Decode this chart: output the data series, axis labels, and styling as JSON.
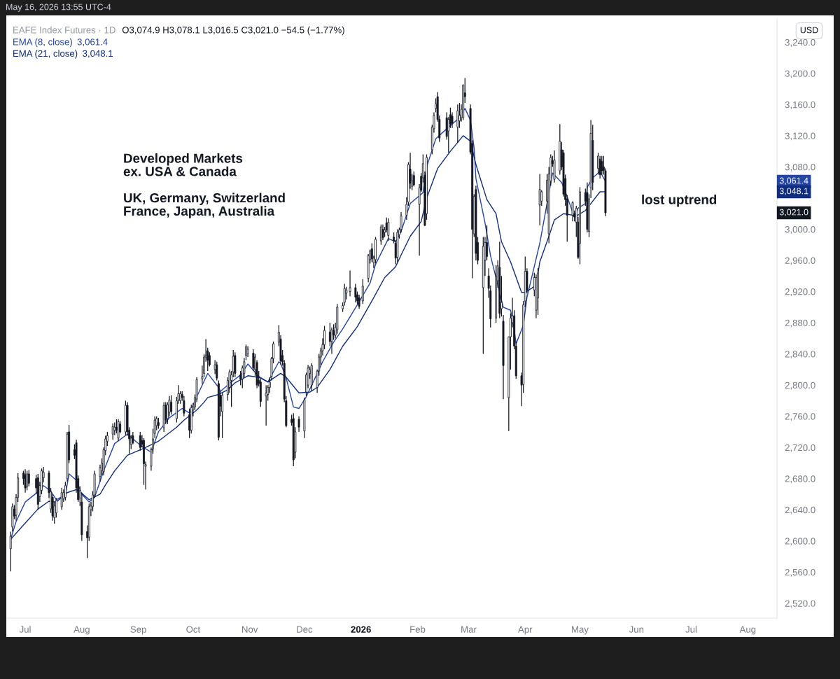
{
  "chart_data": {
    "type": "candlestick",
    "title": "EAFE Index Futures · 1D",
    "subtitle": "O3,074.9 H3,078.1 L3,016.5 C3,021.0 −54.5 (−1.77%)",
    "ylabel": "USD",
    "color": "#131722",
    "legend": "top left",
    "xlim": [
      "2025-06-21",
      "2026-08-17"
    ],
    "xticks": [
      {
        "value": "2025-07-01",
        "label": "Jul"
      },
      {
        "value": "2025-08-01",
        "label": "Aug"
      },
      {
        "value": "2025-09-01",
        "label": "Sep"
      },
      {
        "value": "2025-10-01",
        "label": "Oct"
      },
      {
        "value": "2025-11-01",
        "label": "Nov"
      },
      {
        "value": "2025-12-01",
        "label": "Dec"
      },
      {
        "value": "2026-01-01",
        "label": "2026"
      },
      {
        "value": "2026-02-01",
        "label": "Feb"
      },
      {
        "value": "2026-03-01",
        "label": "Mar"
      },
      {
        "value": "2026-04-01",
        "label": "Apr"
      },
      {
        "value": "2026-05-01",
        "label": "May"
      },
      {
        "value": "2026-06-01",
        "label": "Jun"
      },
      {
        "value": "2026-07-01",
        "label": "Jul"
      },
      {
        "value": "2026-08-01",
        "label": "Aug"
      }
    ],
    "ylim": [
      2501,
      3269
    ],
    "yticks": [
      {
        "value": 2520,
        "label": "2,520.0"
      },
      {
        "value": 2560,
        "label": "2,560.0"
      },
      {
        "value": 2600,
        "label": "2,600.0"
      },
      {
        "value": 2640,
        "label": "2,640.0"
      },
      {
        "value": 2680,
        "label": "2,680.0"
      },
      {
        "value": 2720,
        "label": "2,720.0"
      },
      {
        "value": 2760,
        "label": "2,760.0"
      },
      {
        "value": 2800,
        "label": "2,800.0"
      },
      {
        "value": 2840,
        "label": "2,840.0"
      },
      {
        "value": 2880,
        "label": "2,880.0"
      },
      {
        "value": 2920,
        "label": "2,920.0"
      },
      {
        "value": 2960,
        "label": "2,960.0"
      },
      {
        "value": 3000,
        "label": "3,000.0"
      },
      {
        "value": 3080,
        "label": "3,080.0"
      },
      {
        "value": 3120,
        "label": "3,120.0"
      },
      {
        "value": 3160,
        "label": "3,160.0"
      },
      {
        "value": 3200,
        "label": "3,200.0"
      },
      {
        "value": 3240,
        "label": "3,240.0"
      }
    ],
    "x": [
      "2025-06-23",
      "2025-06-24",
      "2025-06-25",
      "2025-06-26",
      "2025-06-27",
      "2025-06-30",
      "2025-07-01",
      "2025-07-02",
      "2025-07-03",
      "2025-07-07",
      "2025-07-08",
      "2025-07-09",
      "2025-07-10",
      "2025-07-11",
      "2025-07-14",
      "2025-07-15",
      "2025-07-16",
      "2025-07-17",
      "2025-07-18",
      "2025-07-21",
      "2025-07-22",
      "2025-07-23",
      "2025-07-24",
      "2025-07-25",
      "2025-07-28",
      "2025-07-29",
      "2025-07-30",
      "2025-07-31",
      "2025-08-01",
      "2025-08-04",
      "2025-08-05",
      "2025-08-06",
      "2025-08-07",
      "2025-08-08",
      "2025-08-11",
      "2025-08-12",
      "2025-08-13",
      "2025-08-14",
      "2025-08-15",
      "2025-08-18",
      "2025-08-19",
      "2025-08-20",
      "2025-08-21",
      "2025-08-22",
      "2025-08-25",
      "2025-08-26",
      "2025-08-27",
      "2025-08-28",
      "2025-08-29",
      "2025-09-02",
      "2025-09-03",
      "2025-09-04",
      "2025-09-05",
      "2025-09-08",
      "2025-09-09",
      "2025-09-10",
      "2025-09-11",
      "2025-09-12",
      "2025-09-15",
      "2025-09-16",
      "2025-09-17",
      "2025-09-18",
      "2025-09-19",
      "2025-09-22",
      "2025-09-23",
      "2025-09-24",
      "2025-09-25",
      "2025-09-26",
      "2025-09-29",
      "2025-09-30",
      "2025-10-01",
      "2025-10-02",
      "2025-10-03",
      "2025-10-06",
      "2025-10-07",
      "2025-10-08",
      "2025-10-09",
      "2025-10-10",
      "2025-10-13",
      "2025-10-14",
      "2025-10-15",
      "2025-10-16",
      "2025-10-17",
      "2025-10-20",
      "2025-10-21",
      "2025-10-22",
      "2025-10-23",
      "2025-10-24",
      "2025-10-27",
      "2025-10-28",
      "2025-10-29",
      "2025-10-30",
      "2025-10-31",
      "2025-11-03",
      "2025-11-04",
      "2025-11-05",
      "2025-11-06",
      "2025-11-07",
      "2025-11-10",
      "2025-11-11",
      "2025-11-12",
      "2025-11-13",
      "2025-11-14",
      "2025-11-17",
      "2025-11-18",
      "2025-11-19",
      "2025-11-20",
      "2025-11-21",
      "2025-11-24",
      "2025-11-25",
      "2025-11-26",
      "2025-11-28",
      "2025-12-01",
      "2025-12-02",
      "2025-12-03",
      "2025-12-04",
      "2025-12-05",
      "2025-12-08",
      "2025-12-09",
      "2025-12-10",
      "2025-12-11",
      "2025-12-12",
      "2025-12-15",
      "2025-12-16",
      "2025-12-17",
      "2025-12-18",
      "2025-12-19",
      "2025-12-22",
      "2025-12-23",
      "2025-12-24",
      "2025-12-26",
      "2025-12-29",
      "2025-12-30",
      "2025-12-31",
      "2026-01-02",
      "2026-01-05",
      "2026-01-06",
      "2026-01-07",
      "2026-01-08",
      "2026-01-09",
      "2026-01-12",
      "2026-01-13",
      "2026-01-14",
      "2026-01-15",
      "2026-01-16",
      "2026-01-19",
      "2026-01-20",
      "2026-01-21",
      "2026-01-22",
      "2026-01-23",
      "2026-01-26",
      "2026-01-27",
      "2026-01-28",
      "2026-01-29",
      "2026-01-30",
      "2026-02-02",
      "2026-02-03",
      "2026-02-04",
      "2026-02-05",
      "2026-02-06",
      "2026-02-09",
      "2026-02-10",
      "2026-02-11",
      "2026-02-12",
      "2026-02-13",
      "2026-02-17",
      "2026-02-18",
      "2026-02-19",
      "2026-02-20",
      "2026-02-23",
      "2026-02-24",
      "2026-02-25",
      "2026-02-26",
      "2026-02-27",
      "2026-03-02",
      "2026-03-03",
      "2026-03-04",
      "2026-03-05",
      "2026-03-06",
      "2026-03-09",
      "2026-03-10",
      "2026-03-11",
      "2026-03-12",
      "2026-03-13",
      "2026-03-16",
      "2026-03-17",
      "2026-03-18",
      "2026-03-19",
      "2026-03-20",
      "2026-03-23",
      "2026-03-24",
      "2026-03-25",
      "2026-03-26",
      "2026-03-27",
      "2026-03-30",
      "2026-03-31",
      "2026-04-01",
      "2026-04-02",
      "2026-04-06",
      "2026-04-07",
      "2026-04-08",
      "2026-04-09",
      "2026-04-10",
      "2026-04-13",
      "2026-04-14",
      "2026-04-15",
      "2026-04-16",
      "2026-04-17",
      "2026-04-20",
      "2026-04-21",
      "2026-04-22",
      "2026-04-23",
      "2026-04-24",
      "2026-04-27",
      "2026-04-28",
      "2026-04-29",
      "2026-04-30",
      "2026-05-01",
      "2026-05-04",
      "2026-05-05",
      "2026-05-06",
      "2026-05-07",
      "2026-05-08",
      "2026-05-11",
      "2026-05-12",
      "2026-05-13",
      "2026-05-14",
      "2026-05-15"
    ],
    "ohlc": [
      [
        2590,
        2612,
        2561,
        2606
      ],
      [
        2618,
        2648,
        2612,
        2644
      ],
      [
        2641,
        2646,
        2628,
        2632
      ],
      [
        2633,
        2660,
        2626,
        2656
      ],
      [
        2656,
        2687,
        2650,
        2681
      ],
      [
        2687,
        2690,
        2672,
        2680
      ],
      [
        2685,
        2692,
        2662,
        2668
      ],
      [
        2670,
        2690,
        2665,
        2686
      ],
      [
        2686,
        2691,
        2670,
        2674
      ],
      [
        2680,
        2685,
        2660,
        2668
      ],
      [
        2681,
        2686,
        2640,
        2647
      ],
      [
        2657,
        2676,
        2650,
        2671
      ],
      [
        2665,
        2693,
        2660,
        2690
      ],
      [
        2681,
        2695,
        2675,
        2688
      ],
      [
        2687,
        2690,
        2655,
        2662
      ],
      [
        2641,
        2668,
        2636,
        2663
      ],
      [
        2656,
        2660,
        2626,
        2632
      ],
      [
        2630,
        2650,
        2622,
        2645
      ],
      [
        2636,
        2655,
        2630,
        2652
      ],
      [
        2644,
        2668,
        2640,
        2662
      ],
      [
        2654,
        2666,
        2650,
        2662
      ],
      [
        2656,
        2676,
        2652,
        2671
      ],
      [
        2680,
        2740,
        2676,
        2737
      ],
      [
        2740,
        2749,
        2700,
        2704
      ],
      [
        2717,
        2724,
        2705,
        2710
      ],
      [
        2726,
        2730,
        2662,
        2668
      ],
      [
        2680,
        2684,
        2650,
        2653
      ],
      [
        2655,
        2670,
        2645,
        2665
      ],
      [
        2650,
        2662,
        2600,
        2608
      ],
      [
        2612,
        2620,
        2578,
        2604
      ],
      [
        2605,
        2648,
        2600,
        2644
      ],
      [
        2640,
        2650,
        2632,
        2645
      ],
      [
        2644,
        2664,
        2638,
        2659
      ],
      [
        2659,
        2690,
        2655,
        2686
      ],
      [
        2683,
        2698,
        2676,
        2694
      ],
      [
        2690,
        2706,
        2684,
        2700
      ],
      [
        2689,
        2720,
        2684,
        2717
      ],
      [
        2716,
        2735,
        2710,
        2731
      ],
      [
        2728,
        2740,
        2722,
        2735
      ],
      [
        2737,
        2751,
        2730,
        2747
      ],
      [
        2742,
        2752,
        2736,
        2746
      ],
      [
        2746,
        2756,
        2738,
        2742
      ],
      [
        2732,
        2756,
        2728,
        2753
      ],
      [
        2750,
        2754,
        2738,
        2740
      ],
      [
        2740,
        2780,
        2736,
        2774
      ],
      [
        2774,
        2778,
        2735,
        2740
      ],
      [
        2742,
        2746,
        2712,
        2731
      ],
      [
        2724,
        2736,
        2718,
        2732
      ],
      [
        2735,
        2740,
        2724,
        2726
      ],
      [
        2735,
        2740,
        2716,
        2720
      ],
      [
        2729,
        2736,
        2720,
        2724
      ],
      [
        2729,
        2732,
        2672,
        2699
      ],
      [
        2696,
        2702,
        2666,
        2698
      ],
      [
        2696,
        2720,
        2690,
        2717
      ],
      [
        2718,
        2744,
        2712,
        2731
      ],
      [
        2738,
        2760,
        2732,
        2755
      ],
      [
        2748,
        2760,
        2742,
        2757
      ],
      [
        2752,
        2758,
        2744,
        2748
      ],
      [
        2745,
        2778,
        2740,
        2774
      ],
      [
        2774,
        2778,
        2750,
        2755
      ],
      [
        2757,
        2778,
        2750,
        2775
      ],
      [
        2765,
        2786,
        2760,
        2781
      ],
      [
        2778,
        2787,
        2762,
        2766
      ],
      [
        2757,
        2785,
        2752,
        2780
      ],
      [
        2781,
        2800,
        2776,
        2789
      ],
      [
        2780,
        2792,
        2776,
        2789
      ],
      [
        2788,
        2792,
        2780,
        2784
      ],
      [
        2780,
        2786,
        2760,
        2764
      ],
      [
        2762,
        2770,
        2732,
        2742
      ],
      [
        2742,
        2775,
        2738,
        2771
      ],
      [
        2768,
        2777,
        2760,
        2772
      ],
      [
        2772,
        2788,
        2768,
        2784
      ],
      [
        2782,
        2810,
        2778,
        2807
      ],
      [
        2808,
        2825,
        2802,
        2811
      ],
      [
        2815,
        2840,
        2810,
        2836
      ],
      [
        2836,
        2859,
        2830,
        2838
      ],
      [
        2844,
        2848,
        2818,
        2832
      ],
      [
        2838,
        2842,
        2824,
        2826
      ],
      [
        2820,
        2832,
        2814,
        2826
      ],
      [
        2826,
        2830,
        2806,
        2809
      ],
      [
        2802,
        2806,
        2729,
        2733
      ],
      [
        2787,
        2792,
        2760,
        2773
      ],
      [
        2766,
        2790,
        2732,
        2787
      ],
      [
        2788,
        2810,
        2780,
        2806
      ],
      [
        2797,
        2820,
        2790,
        2817
      ],
      [
        2806,
        2818,
        2772,
        2813
      ],
      [
        2817,
        2845,
        2810,
        2837
      ],
      [
        2838,
        2842,
        2810,
        2815
      ],
      [
        2813,
        2818,
        2800,
        2808
      ],
      [
        2808,
        2825,
        2796,
        2822
      ],
      [
        2815,
        2835,
        2810,
        2830
      ],
      [
        2838,
        2852,
        2832,
        2849
      ],
      [
        2840,
        2850,
        2836,
        2846
      ],
      [
        2841,
        2846,
        2818,
        2822
      ],
      [
        2820,
        2840,
        2812,
        2836
      ],
      [
        2829,
        2832,
        2796,
        2800
      ],
      [
        2806,
        2818,
        2798,
        2802
      ],
      [
        2804,
        2808,
        2772,
        2779
      ],
      [
        2786,
        2800,
        2748,
        2790
      ],
      [
        2788,
        2800,
        2780,
        2797
      ],
      [
        2797,
        2810,
        2790,
        2804
      ],
      [
        2811,
        2836,
        2806,
        2834
      ],
      [
        2834,
        2856,
        2828,
        2853
      ],
      [
        2855,
        2877,
        2850,
        2868
      ],
      [
        2859,
        2864,
        2826,
        2831
      ],
      [
        2838,
        2845,
        2825,
        2830
      ],
      [
        2828,
        2832,
        2778,
        2782
      ],
      [
        2780,
        2786,
        2746,
        2748
      ],
      [
        2756,
        2762,
        2748,
        2752
      ],
      [
        2757,
        2764,
        2696,
        2704
      ],
      [
        2714,
        2746,
        2706,
        2740
      ],
      [
        2756,
        2760,
        2740,
        2746
      ],
      [
        2741,
        2784,
        2732,
        2781
      ],
      [
        2791,
        2816,
        2786,
        2813
      ],
      [
        2800,
        2826,
        2796,
        2822
      ],
      [
        2815,
        2824,
        2808,
        2820
      ],
      [
        2800,
        2828,
        2792,
        2825
      ],
      [
        2797,
        2820,
        2790,
        2818
      ],
      [
        2818,
        2840,
        2812,
        2836
      ],
      [
        2836,
        2848,
        2826,
        2844
      ],
      [
        2844,
        2860,
        2838,
        2852
      ],
      [
        2852,
        2876,
        2846,
        2870
      ],
      [
        2868,
        2880,
        2850,
        2856
      ],
      [
        2856,
        2874,
        2840,
        2871
      ],
      [
        2870,
        2878,
        2858,
        2864
      ],
      [
        2864,
        2880,
        2860,
        2874
      ],
      [
        2871,
        2904,
        2866,
        2900
      ],
      [
        2898,
        2906,
        2894,
        2902
      ],
      [
        2906,
        2930,
        2902,
        2924
      ],
      [
        2918,
        2926,
        2910,
        2922
      ],
      [
        2920,
        2947,
        2914,
        2925
      ],
      [
        2925,
        2930,
        2906,
        2913
      ],
      [
        2916,
        2920,
        2904,
        2908
      ],
      [
        2912,
        2916,
        2898,
        2901
      ],
      [
        2908,
        2936,
        2904,
        2927
      ],
      [
        2937,
        2968,
        2932,
        2966
      ],
      [
        2961,
        2974,
        2956,
        2972
      ],
      [
        2975,
        2982,
        2958,
        2962
      ],
      [
        2957,
        2966,
        2950,
        2963
      ],
      [
        2961,
        2990,
        2956,
        2987
      ],
      [
        2985,
        3006,
        2980,
        3003
      ],
      [
        3000,
        3006,
        2986,
        2989
      ],
      [
        2996,
        3003,
        2990,
        2999
      ],
      [
        3008,
        3015,
        2996,
        2999
      ],
      [
        2992,
        3014,
        2985,
        3009
      ],
      [
        2990,
        2996,
        2982,
        2985
      ],
      [
        2982,
        2986,
        2955,
        2963
      ],
      [
        2964,
        3000,
        2958,
        2996
      ],
      [
        2993,
        3002,
        2988,
        2999
      ],
      [
        3000,
        3022,
        2996,
        3017
      ],
      [
        3018,
        3041,
        3012,
        3032
      ],
      [
        3035,
        3086,
        3030,
        3083
      ],
      [
        3077,
        3098,
        3052,
        3059
      ],
      [
        3055,
        3071,
        3050,
        3062
      ],
      [
        3069,
        3074,
        3055,
        3057
      ],
      [
        3032,
        3058,
        2966,
        3053
      ],
      [
        3068,
        3072,
        3048,
        3050
      ],
      [
        3066,
        3096,
        3060,
        3084
      ],
      [
        3069,
        3074,
        3004,
        3005
      ],
      [
        3020,
        3096,
        3012,
        3092
      ],
      [
        3102,
        3134,
        3096,
        3131
      ],
      [
        3129,
        3150,
        3124,
        3146
      ],
      [
        3155,
        3168,
        3150,
        3161
      ],
      [
        3170,
        3176,
        3138,
        3141
      ],
      [
        3141,
        3146,
        3112,
        3117
      ],
      [
        3143,
        3150,
        3115,
        3119
      ],
      [
        3126,
        3144,
        3098,
        3141
      ],
      [
        3147,
        3156,
        3130,
        3135
      ],
      [
        3145,
        3150,
        3130,
        3136
      ],
      [
        3131,
        3160,
        3111,
        3152
      ],
      [
        3139,
        3162,
        3130,
        3146
      ],
      [
        3143,
        3160,
        3138,
        3154
      ],
      [
        3143,
        3186,
        3140,
        3185
      ],
      [
        3175,
        3194,
        3162,
        3170
      ],
      [
        3155,
        3160,
        3096,
        3099
      ],
      [
        3110,
        3114,
        2937,
        3000
      ],
      [
        2994,
        3045,
        2990,
        3042
      ],
      [
        3051,
        3056,
        2960,
        2969
      ],
      [
        2983,
        2990,
        2955,
        2960
      ],
      [
        2925,
        2990,
        2840,
        2978
      ],
      [
        2960,
        2990,
        2940,
        2983
      ],
      [
        2983,
        3005,
        2960,
        2965
      ],
      [
        2940,
        2950,
        2912,
        2924
      ],
      [
        2921,
        2928,
        2874,
        2885
      ],
      [
        2886,
        2954,
        2880,
        2940
      ],
      [
        2934,
        2960,
        2925,
        2953
      ],
      [
        2951,
        2984,
        2886,
        2892
      ],
      [
        2898,
        2940,
        2888,
        2906
      ],
      [
        2882,
        2890,
        2782,
        2825
      ],
      [
        2784,
        2862,
        2741,
        2862
      ],
      [
        2862,
        2892,
        2820,
        2886
      ],
      [
        2880,
        2912,
        2874,
        2889
      ],
      [
        2889,
        2896,
        2846,
        2850
      ],
      [
        2850,
        2856,
        2808,
        2812
      ],
      [
        2812,
        2816,
        2773,
        2800
      ],
      [
        2801,
        2908,
        2790,
        2903
      ],
      [
        2908,
        2965,
        2900,
        2946
      ],
      [
        2946,
        2950,
        2918,
        2922
      ],
      [
        2922,
        2944,
        2914,
        2938
      ],
      [
        2896,
        2942,
        2886,
        2938
      ],
      [
        2912,
        2950,
        2890,
        2944
      ],
      [
        3031,
        3071,
        3005,
        3051
      ],
      [
        3036,
        3050,
        3030,
        3048
      ],
      [
        3036,
        3071,
        3020,
        3063
      ],
      [
        2994,
        3080,
        2982,
        3071
      ],
      [
        3062,
        3096,
        3056,
        3092
      ],
      [
        3088,
        3094,
        3080,
        3084
      ],
      [
        3064,
        3101,
        3060,
        3089
      ],
      [
        3075,
        3135,
        3070,
        3113
      ],
      [
        3102,
        3112,
        3076,
        3080
      ],
      [
        3098,
        3102,
        3042,
        3045
      ],
      [
        3065,
        3070,
        3030,
        3038
      ],
      [
        3039,
        3044,
        2984,
        3018
      ],
      [
        3018,
        3036,
        3010,
        3034
      ],
      [
        3020,
        3024,
        3010,
        3016
      ],
      [
        3009,
        3030,
        2990,
        3027
      ],
      [
        3009,
        3016,
        2962,
        2964
      ],
      [
        2982,
        3054,
        2955,
        3048
      ],
      [
        3047,
        3052,
        3030,
        3036
      ],
      [
        3047,
        3060,
        2996,
        3000
      ],
      [
        2997,
        3045,
        2990,
        3039
      ],
      [
        3053,
        3140,
        3040,
        3123
      ],
      [
        3114,
        3134,
        3050,
        3060
      ],
      [
        3078,
        3098,
        3070,
        3094
      ],
      [
        3090,
        3094,
        3065,
        3070
      ],
      [
        3087,
        3094,
        3070,
        3075
      ],
      [
        3080,
        3094,
        3070,
        3075.5
      ],
      [
        3074.9,
        3078.1,
        3016.5,
        3021.0
      ]
    ],
    "series": [
      {
        "name": "EMA (8, close)",
        "type": "line",
        "color": "#2444a8",
        "x": [
          "2025-06-23",
          "2025-06-26",
          "2025-07-01",
          "2025-07-08",
          "2025-07-11",
          "2025-07-15",
          "2025-07-18",
          "2025-07-23",
          "2025-07-25",
          "2025-07-29",
          "2025-08-01",
          "2025-08-05",
          "2025-08-08",
          "2025-08-13",
          "2025-08-19",
          "2025-08-26",
          "2025-09-03",
          "2025-09-08",
          "2025-09-12",
          "2025-09-18",
          "2025-09-25",
          "2025-09-29",
          "2025-10-03",
          "2025-10-09",
          "2025-10-15",
          "2025-10-16",
          "2025-10-22",
          "2025-10-27",
          "2025-10-31",
          "2025-11-06",
          "2025-11-11",
          "2025-11-17",
          "2025-11-18",
          "2025-11-21",
          "2025-11-25",
          "2025-11-28",
          "2025-12-02",
          "2025-12-05",
          "2025-12-11",
          "2025-12-17",
          "2025-12-22",
          "2025-12-30",
          "2026-01-06",
          "2026-01-09",
          "2026-01-16",
          "2026-01-20",
          "2026-01-23",
          "2026-01-28",
          "2026-02-04",
          "2026-02-06",
          "2026-02-11",
          "2026-02-18",
          "2026-02-23",
          "2026-02-27",
          "2026-03-02",
          "2026-03-04",
          "2026-03-05",
          "2026-03-10",
          "2026-03-13",
          "2026-03-20",
          "2026-03-24",
          "2026-03-26",
          "2026-03-27",
          "2026-03-31",
          "2026-04-02",
          "2026-04-09",
          "2026-04-16",
          "2026-04-21",
          "2026-04-24",
          "2026-04-28",
          "2026-04-30",
          "2026-05-04",
          "2026-05-05",
          "2026-05-08",
          "2026-05-12",
          "2026-05-15"
        ],
        "values": [
          2602,
          2625,
          2650,
          2663,
          2671,
          2664,
          2653,
          2659,
          2686,
          2678,
          2660,
          2650,
          2656,
          2690,
          2725,
          2737,
          2721,
          2714,
          2740,
          2758,
          2770,
          2764,
          2785,
          2815,
          2797,
          2792,
          2804,
          2813,
          2827,
          2811,
          2804,
          2830,
          2828,
          2809,
          2772,
          2770,
          2785,
          2800,
          2830,
          2855,
          2872,
          2903,
          2931,
          2955,
          2988,
          2984,
          2997,
          3033,
          3047,
          3080,
          3116,
          3131,
          3141,
          3155,
          3140,
          3104,
          3065,
          3008,
          2966,
          2900,
          2896,
          2871,
          2853,
          2877,
          2913,
          2982,
          3072,
          3060,
          3042,
          3015,
          3027,
          3033,
          3054,
          3066,
          3074,
          3061.4
        ]
      },
      {
        "name": "EMA (21, close)",
        "type": "line",
        "color": "#0f2c7e",
        "x": [
          "2025-06-23",
          "2025-07-01",
          "2025-07-08",
          "2025-07-14",
          "2025-07-18",
          "2025-07-24",
          "2025-07-29",
          "2025-07-31",
          "2025-08-05",
          "2025-08-11",
          "2025-08-14",
          "2025-08-19",
          "2025-08-26",
          "2025-09-04",
          "2025-09-12",
          "2025-09-22",
          "2025-09-26",
          "2025-10-03",
          "2025-10-07",
          "2025-10-09",
          "2025-10-15",
          "2025-10-20",
          "2025-10-24",
          "2025-10-31",
          "2025-11-06",
          "2025-11-11",
          "2025-11-18",
          "2025-11-21",
          "2025-11-28",
          "2025-12-04",
          "2025-12-08",
          "2025-12-15",
          "2025-12-22",
          "2025-12-30",
          "2026-01-07",
          "2026-01-14",
          "2026-01-20",
          "2026-01-23",
          "2026-01-28",
          "2026-02-03",
          "2026-02-06",
          "2026-02-12",
          "2026-02-19",
          "2026-02-26",
          "2026-03-02",
          "2026-03-05",
          "2026-03-11",
          "2026-03-16",
          "2026-03-19",
          "2026-03-24",
          "2026-03-30",
          "2026-04-01",
          "2026-04-07",
          "2026-04-09",
          "2026-04-14",
          "2026-04-17",
          "2026-04-22",
          "2026-04-27",
          "2026-04-29",
          "2026-05-04",
          "2026-05-06",
          "2026-05-12",
          "2026-05-15"
        ],
        "values": [
          2602,
          2623,
          2641,
          2651,
          2650,
          2662,
          2666,
          2663,
          2653,
          2660,
          2672,
          2690,
          2710,
          2719,
          2728,
          2746,
          2755,
          2768,
          2778,
          2784,
          2788,
          2794,
          2803,
          2812,
          2810,
          2804,
          2815,
          2810,
          2790,
          2791,
          2797,
          2820,
          2850,
          2875,
          2908,
          2938,
          2952,
          2967,
          2991,
          3010,
          3040,
          3078,
          3100,
          3120,
          3113,
          3083,
          3038,
          3020,
          2984,
          2958,
          2919,
          2919,
          2928,
          2958,
          2991,
          3012,
          3020,
          3018,
          3017,
          3024,
          3030,
          3048,
          3048.1
        ]
      }
    ],
    "annotations": [
      "May 16, 2026 13:55 UTC-4",
      "3,061.4",
      "3,048.1",
      "3,021.0",
      "Developed Markets\nex. USA & Canada\n\nUK, Germany, Switzerland\nFrance, Japan, Australia",
      "lost uptrend"
    ]
  }
}
